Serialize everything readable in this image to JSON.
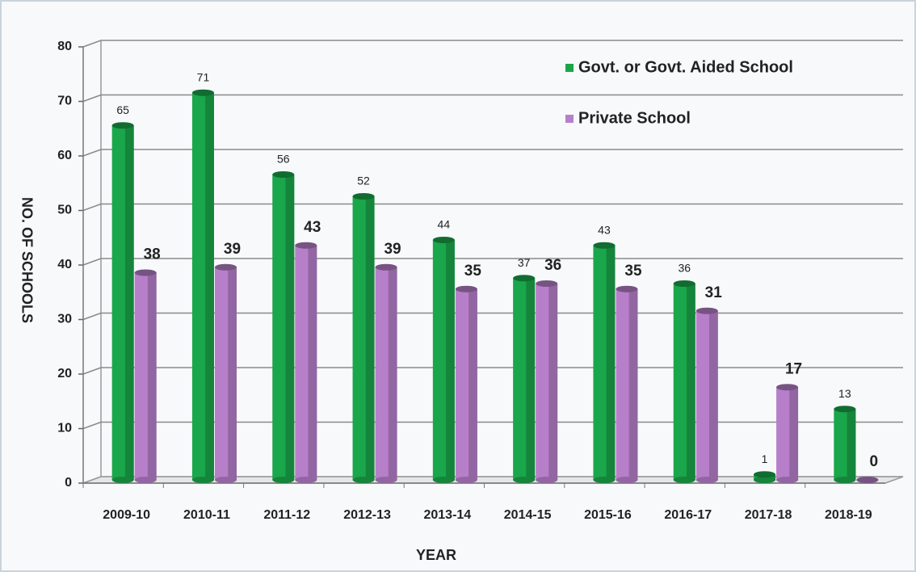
{
  "chart_data": {
    "type": "bar",
    "categories": [
      "2009-10",
      "2010-11",
      "2011-12",
      "2012-13",
      "2013-14",
      "2014-15",
      "2015-16",
      "2016-17",
      "2017-18",
      "2018-19"
    ],
    "series": [
      {
        "name": "Govt. or Govt. Aided School",
        "color": "#1aa64a",
        "values": [
          65,
          71,
          56,
          52,
          44,
          37,
          43,
          36,
          1,
          13
        ]
      },
      {
        "name": "Private School",
        "color": "#b77fca",
        "values": [
          38,
          39,
          43,
          39,
          35,
          36,
          35,
          31,
          17,
          0
        ]
      }
    ],
    "x_label": "YEAR",
    "y_label": "NO. OF SCHOOLS",
    "ylim": [
      0,
      80
    ],
    "yticks": [
      0,
      10,
      20,
      30,
      40,
      50,
      60,
      70,
      80
    ],
    "grid": true,
    "legend": "top-right"
  }
}
